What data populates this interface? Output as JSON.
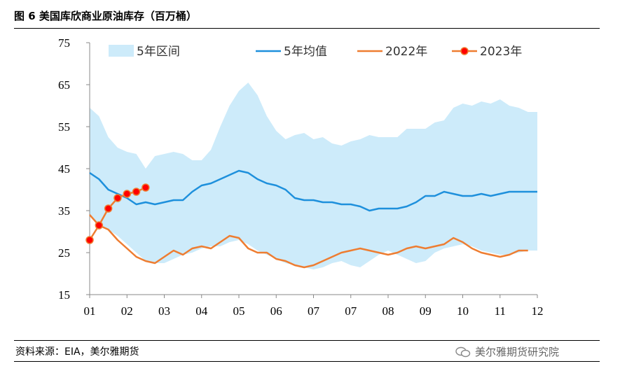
{
  "title": "图 6  美国库欣商业原油库存（百万桶）",
  "source": "资料来源：EIA，美尔雅期货",
  "watermark": "美尔雅期货研究院",
  "colors": {
    "band": "#CDEBFA",
    "avg": "#1E90DC",
    "y2022": "#EE7D31",
    "y2023": "#FF0000",
    "y2023_line": "#EE7D31"
  },
  "chart_data": {
    "type": "line",
    "title": "美国库欣商业原油库存（百万桶）",
    "xlabel": "",
    "ylabel": "",
    "ylim": [
      15,
      75
    ],
    "yticks": [
      15,
      25,
      35,
      45,
      55,
      65,
      75
    ],
    "xlim": [
      1,
      13
    ],
    "xticks": [
      "01",
      "02",
      "03",
      "04",
      "05",
      "06",
      "07",
      "07",
      "08",
      "09",
      "10",
      "11",
      "12"
    ],
    "legend": [
      "5年区间",
      "5年均值",
      "2022年",
      "2023年"
    ],
    "series": [
      {
        "name": "5年区间",
        "kind": "band",
        "x": [
          1,
          1.25,
          1.5,
          1.75,
          2,
          2.25,
          2.5,
          2.75,
          3,
          3.25,
          3.5,
          3.75,
          4,
          4.25,
          4.5,
          4.75,
          5,
          5.25,
          5.5,
          5.75,
          6,
          6.25,
          6.5,
          6.75,
          7,
          7.25,
          7.5,
          7.75,
          8,
          8.25,
          8.5,
          8.75,
          9,
          9.25,
          9.5,
          9.75,
          10,
          10.25,
          10.5,
          10.75,
          11,
          11.25,
          11.5,
          11.75,
          12,
          12.25,
          12.5,
          12.75,
          13
        ],
        "upper": [
          59.5,
          57.5,
          52.5,
          50,
          49,
          48.5,
          45,
          48,
          48.5,
          49,
          48.5,
          47,
          47,
          49.5,
          55,
          60,
          63.5,
          65.5,
          62.5,
          57.5,
          54,
          52,
          53,
          53.5,
          52,
          52.5,
          51,
          50.5,
          51.5,
          52,
          53,
          52.5,
          52.5,
          52.5,
          54.5,
          54.5,
          54.5,
          56,
          56.5,
          59.5,
          60.5,
          60,
          61,
          60.5,
          61.5,
          60,
          59.5,
          58.5,
          58.5
        ],
        "lower": [
          34,
          31.5,
          30.5,
          29,
          27,
          25,
          23,
          22.5,
          22.5,
          23.5,
          24.5,
          25,
          26,
          26.5,
          26.5,
          27.5,
          28,
          27,
          25.5,
          24.5,
          23.5,
          22.5,
          22,
          21.5,
          21,
          21.5,
          22.5,
          23,
          22,
          21.5,
          23,
          24.5,
          25.5,
          24.5,
          23.5,
          22.5,
          23,
          25,
          26,
          26.5,
          27,
          26.5,
          25.5,
          25,
          24.5,
          24.5,
          25,
          25.5,
          25.5
        ]
      },
      {
        "name": "5年均值",
        "x": [
          1,
          1.25,
          1.5,
          1.75,
          2,
          2.25,
          2.5,
          2.75,
          3,
          3.25,
          3.5,
          3.75,
          4,
          4.25,
          4.5,
          4.75,
          5,
          5.25,
          5.5,
          5.75,
          6,
          6.25,
          6.5,
          6.75,
          7,
          7.25,
          7.5,
          7.75,
          8,
          8.25,
          8.5,
          8.75,
          9,
          9.25,
          9.5,
          9.75,
          10,
          10.25,
          10.5,
          10.75,
          11,
          11.25,
          11.5,
          11.75,
          12,
          12.25,
          12.5,
          12.75,
          13
        ],
        "values": [
          44,
          42.5,
          40,
          39,
          38,
          36.5,
          37,
          36.5,
          37,
          37.5,
          37.5,
          39.5,
          41,
          41.5,
          42.5,
          43.5,
          44.5,
          44,
          42.5,
          41.5,
          41,
          40,
          38,
          37.5,
          37.5,
          37,
          37,
          36.5,
          36.5,
          36,
          35,
          35.5,
          35.5,
          35.5,
          36,
          37,
          38.5,
          38.5,
          39.5,
          39,
          38.5,
          38.5,
          39,
          38.5,
          39,
          39.5,
          39.5,
          39.5,
          39.5
        ]
      },
      {
        "name": "2022年",
        "x": [
          1,
          1.25,
          1.5,
          1.75,
          2,
          2.25,
          2.5,
          2.75,
          3,
          3.25,
          3.5,
          3.75,
          4,
          4.25,
          4.5,
          4.75,
          5,
          5.25,
          5.5,
          5.75,
          6,
          6.25,
          6.5,
          6.75,
          7,
          7.25,
          7.5,
          7.75,
          8,
          8.25,
          8.5,
          8.75,
          9,
          9.25,
          9.5,
          9.75,
          10,
          10.25,
          10.5,
          10.75,
          11,
          11.25,
          11.5,
          11.75,
          12,
          12.25,
          12.5,
          12.75
        ],
        "values": [
          34,
          31.5,
          30.5,
          28,
          26,
          24,
          23,
          22.5,
          24,
          25.5,
          24.5,
          26,
          26.5,
          26,
          27.5,
          29,
          28.5,
          26,
          25,
          25,
          23.5,
          23,
          22,
          21.5,
          22,
          23,
          24,
          25,
          25.5,
          26,
          25.5,
          25,
          24.5,
          25,
          26,
          26.5,
          26,
          26.5,
          27,
          28.5,
          27.5,
          26,
          25,
          24.5,
          24,
          24.5,
          25.5,
          25.5
        ]
      },
      {
        "name": "2023年",
        "x": [
          1,
          1.25,
          1.5,
          1.75,
          2,
          2.25,
          2.5
        ],
        "values": [
          28,
          31.5,
          35.5,
          38,
          39,
          39.5,
          40.5
        ]
      }
    ]
  }
}
